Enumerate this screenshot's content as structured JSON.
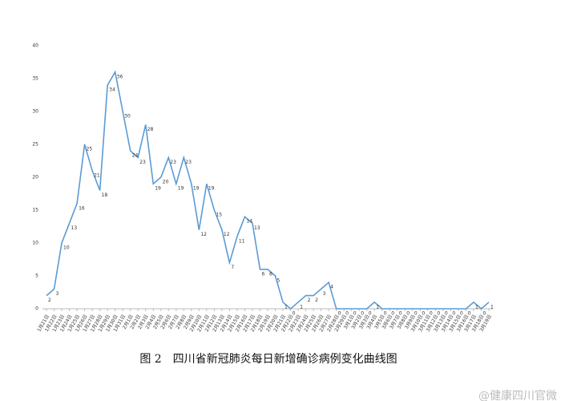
{
  "chart_data": {
    "type": "line",
    "caption": "图 2　四川省新冠肺炎每日新增确诊病例变化曲线图",
    "watermark": "@健康四川官微",
    "categories": [
      "1月21日",
      "1月22日",
      "1月23日",
      "1月24日",
      "1月25日",
      "1月26日",
      "1月27日",
      "1月28日",
      "1月29日",
      "1月30日",
      "1月31日",
      "2月1日",
      "2月2日",
      "2月3日",
      "2月4日",
      "2月5日",
      "2月6日",
      "2月7日",
      "2月8日",
      "2月9日",
      "2月10日",
      "2月11日",
      "2月12日",
      "2月13日",
      "2月14日",
      "2月15日",
      "2月16日",
      "2月17日",
      "2月18日",
      "2月19日",
      "2月20日",
      "2月21日",
      "2月22日",
      "2月23日",
      "2月24日",
      "2月25日",
      "2月26日",
      "2月27日",
      "2月28日",
      "2月29日",
      "3月1日",
      "3月2日",
      "3月3日",
      "3月4日",
      "3月5日",
      "3月6日",
      "3月7日",
      "3月8日",
      "3月9日",
      "3月10日",
      "3月11日",
      "3月12日",
      "3月13日",
      "3月14日",
      "3月15日",
      "3月16日",
      "3月17日",
      "3月18日",
      "3月19日"
    ],
    "values": [
      2,
      3,
      10,
      13,
      16,
      25,
      21,
      18,
      34,
      36,
      30,
      24,
      23,
      28,
      19,
      20,
      23,
      19,
      23,
      19,
      12,
      19,
      15,
      12,
      7,
      11,
      14,
      13,
      6,
      6,
      5,
      1,
      0,
      1,
      2,
      2,
      3,
      4,
      0,
      0,
      0,
      0,
      0,
      1,
      0,
      0,
      0,
      0,
      0,
      0,
      0,
      0,
      0,
      0,
      0,
      0,
      1,
      0,
      1
    ],
    "color": "#5b9bd5",
    "ylim": [
      0,
      40
    ],
    "yticks": [
      0,
      5,
      10,
      15,
      20,
      25,
      30,
      35,
      40
    ]
  }
}
